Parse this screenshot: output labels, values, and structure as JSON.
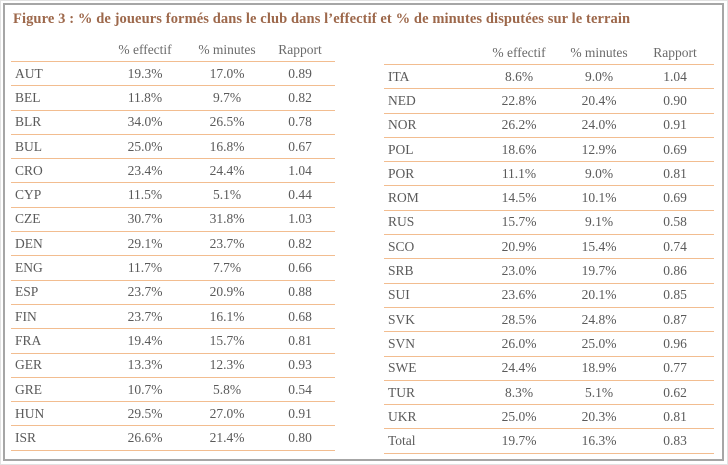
{
  "title": "Figure 3 : % de joueurs formés dans le club dans l’effectif et % de minutes disputées sur le terrain",
  "columns": [
    "% effectif",
    "% minutes",
    "Rapport"
  ],
  "left_table": {
    "rows": [
      [
        "AUT",
        "19.3%",
        "17.0%",
        "0.89"
      ],
      [
        "BEL",
        "11.8%",
        "9.7%",
        "0.82"
      ],
      [
        "BLR",
        "34.0%",
        "26.5%",
        "0.78"
      ],
      [
        "BUL",
        "25.0%",
        "16.8%",
        "0.67"
      ],
      [
        "CRO",
        "23.4%",
        "24.4%",
        "1.04"
      ],
      [
        "CYP",
        "11.5%",
        "5.1%",
        "0.44"
      ],
      [
        "CZE",
        "30.7%",
        "31.8%",
        "1.03"
      ],
      [
        "DEN",
        "29.1%",
        "23.7%",
        "0.82"
      ],
      [
        "ENG",
        "11.7%",
        "7.7%",
        "0.66"
      ],
      [
        "ESP",
        "23.7%",
        "20.9%",
        "0.88"
      ],
      [
        "FIN",
        "23.7%",
        "16.1%",
        "0.68"
      ],
      [
        "FRA",
        "19.4%",
        "15.7%",
        "0.81"
      ],
      [
        "GER",
        "13.3%",
        "12.3%",
        "0.93"
      ],
      [
        "GRE",
        "10.7%",
        "5.8%",
        "0.54"
      ],
      [
        "HUN",
        "29.5%",
        "27.0%",
        "0.91"
      ],
      [
        "ISR",
        "26.6%",
        "21.4%",
        "0.80"
      ]
    ]
  },
  "right_table": {
    "rows": [
      [
        "ITA",
        "8.6%",
        "9.0%",
        "1.04"
      ],
      [
        "NED",
        "22.8%",
        "20.4%",
        "0.90"
      ],
      [
        "NOR",
        "26.2%",
        "24.0%",
        "0.91"
      ],
      [
        "POL",
        "18.6%",
        "12.9%",
        "0.69"
      ],
      [
        "POR",
        "11.1%",
        "9.0%",
        "0.81"
      ],
      [
        "ROM",
        "14.5%",
        "10.1%",
        "0.69"
      ],
      [
        "RUS",
        "15.7%",
        "9.1%",
        "0.58"
      ],
      [
        "SCO",
        "20.9%",
        "15.4%",
        "0.74"
      ],
      [
        "SRB",
        "23.0%",
        "19.7%",
        "0.86"
      ],
      [
        "SUI",
        "23.6%",
        "20.1%",
        "0.85"
      ],
      [
        "SVK",
        "28.5%",
        "24.8%",
        "0.87"
      ],
      [
        "SVN",
        "26.0%",
        "25.0%",
        "0.96"
      ],
      [
        "SWE",
        "24.4%",
        "18.9%",
        "0.77"
      ],
      [
        "TUR",
        "8.3%",
        "5.1%",
        "0.62"
      ],
      [
        "UKR",
        "25.0%",
        "20.3%",
        "0.81"
      ],
      [
        "Total",
        "19.7%",
        "16.3%",
        "0.83"
      ]
    ]
  },
  "colors": {
    "title": "#9d684b",
    "rule": "#f2bd90",
    "text": "#5a5a5a",
    "header": "#6b6b6b",
    "border": "#a6a6a6"
  }
}
